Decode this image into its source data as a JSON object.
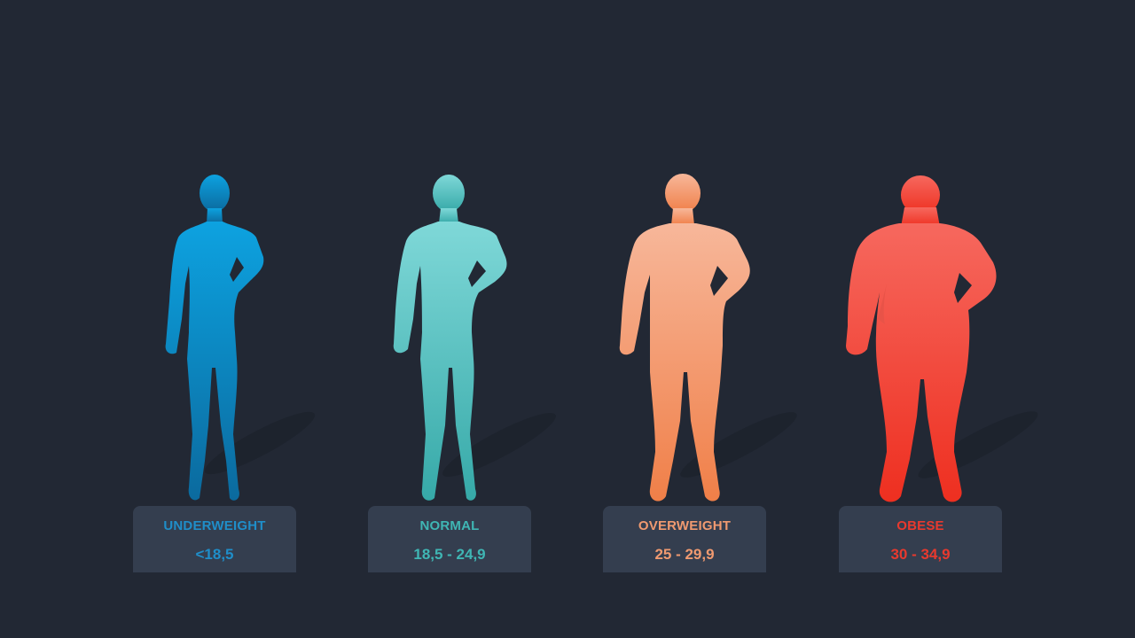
{
  "categories": [
    {
      "name": "UNDERWEIGHT",
      "range": "<18,5",
      "color": "#1f8ec9",
      "gradient_top": "#0da2e0",
      "gradient_bottom": "#0b6a9e",
      "icon": "thin-person-silhouette-icon"
    },
    {
      "name": "NORMAL",
      "range": "18,5 - 24,9",
      "color": "#3fb6b4",
      "gradient_top": "#7fd8d8",
      "gradient_bottom": "#36a9a8",
      "icon": "normal-person-silhouette-icon"
    },
    {
      "name": "OVERWEIGHT",
      "range": "25 - 29,9",
      "color": "#f09a70",
      "gradient_top": "#f7b79a",
      "gradient_bottom": "#f07f48",
      "icon": "overweight-person-silhouette-icon"
    },
    {
      "name": "OBESE",
      "range": "30 - 34,9",
      "color": "#e8392e",
      "gradient_top": "#f6685e",
      "gradient_bottom": "#ee2f20",
      "icon": "obese-person-silhouette-icon"
    }
  ]
}
